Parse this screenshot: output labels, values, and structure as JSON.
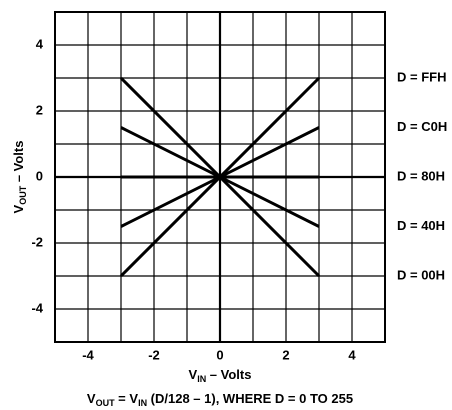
{
  "chart_data": {
    "type": "line",
    "x": [
      -3,
      3
    ],
    "series": [
      {
        "name": "D = FFH",
        "color": "#000000",
        "values": [
          -3,
          3
        ]
      },
      {
        "name": "D = C0H",
        "color": "#000000",
        "values": [
          -1.5,
          1.5
        ]
      },
      {
        "name": "D = 80H",
        "color": "#000000",
        "values": [
          0,
          0
        ]
      },
      {
        "name": "D = 40H",
        "color": "#000000",
        "values": [
          1.5,
          -1.5
        ]
      },
      {
        "name": "D = 00H",
        "color": "#000000",
        "values": [
          3,
          -3
        ]
      }
    ],
    "xlim": [
      -5,
      5
    ],
    "ylim": [
      -5,
      5
    ],
    "xticks": [
      -4,
      -2,
      0,
      2,
      4
    ],
    "yticks": [
      -4,
      -2,
      0,
      2,
      4
    ],
    "x_gridlines": [
      -5,
      -4,
      -3,
      -2,
      -1,
      0,
      1,
      2,
      3,
      4,
      5
    ],
    "y_gridlines": [
      -5,
      -4,
      -3,
      -2,
      -1,
      0,
      1,
      2,
      3,
      4,
      5
    ],
    "grid": true,
    "xlabel": [
      {
        "text": "V"
      },
      {
        "text": "IN",
        "sub": true
      },
      {
        "text": " – Volts"
      }
    ],
    "ylabel": [
      {
        "text": "V"
      },
      {
        "text": "OUT",
        "sub": true
      },
      {
        "text": " – Volts"
      }
    ],
    "caption": [
      {
        "text": "V"
      },
      {
        "text": "OUT",
        "sub": true
      },
      {
        "text": " = V"
      },
      {
        "text": "IN",
        "sub": true
      },
      {
        "text": " (D/128 – 1), WHERE D = 0 TO 255"
      }
    ]
  }
}
